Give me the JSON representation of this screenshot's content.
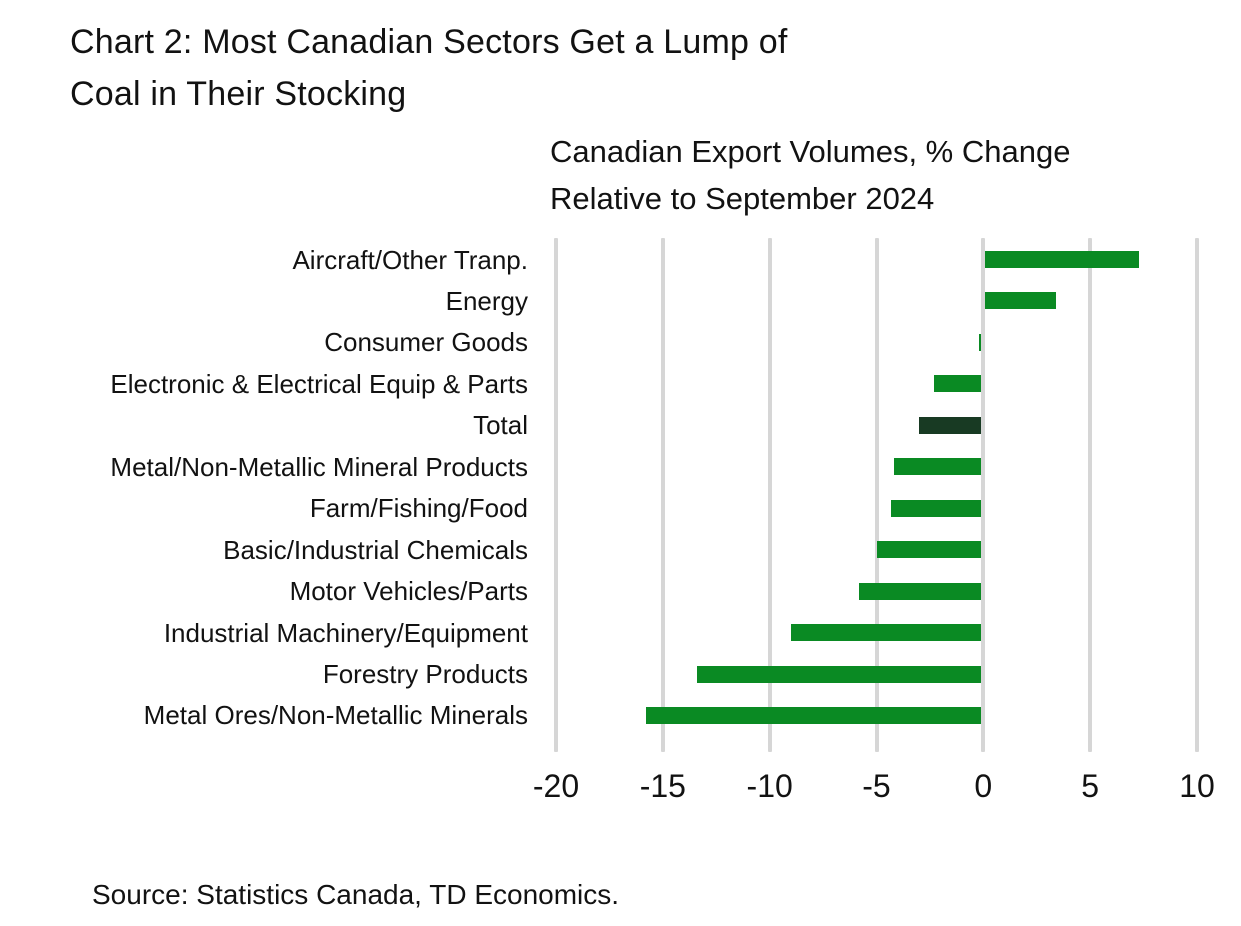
{
  "header": {
    "title_line1": "Chart 2: Most Canadian Sectors Get a Lump of",
    "title_line2": "Coal in Their Stocking",
    "subtitle_line1": "Canadian Export Volumes, % Change",
    "subtitle_line2": "Relative to September 2024"
  },
  "footer": {
    "source": "Source: Statistics Canada, TD Economics."
  },
  "colors": {
    "bar_green": "#0a8a23",
    "bar_highlight_dark": "#183a23",
    "gridline_gray": "#d6d6d6",
    "text": "#121212"
  },
  "chart_data": {
    "type": "bar",
    "orientation": "horizontal",
    "title": "Chart 2: Most Canadian Sectors Get a Lump of Coal in Their Stocking",
    "subtitle": "Canadian Export Volumes, % Change Relative to September 2024",
    "categories": [
      "Aircraft/Other Tranp.",
      "Energy",
      "Consumer Goods",
      "Electronic & Electrical Equip & Parts",
      "Total",
      "Metal/Non-Metallic Mineral Products",
      "Farm/Fishing/Food",
      "Basic/Industrial Chemicals",
      "Motor Vehicles/Parts",
      "Industrial Machinery/Equipment",
      "Forestry Products",
      "Metal Ores/Non-Metallic Minerals"
    ],
    "values": [
      7.3,
      3.4,
      -0.2,
      -2.3,
      -3.0,
      -4.2,
      -4.3,
      -5.0,
      -5.8,
      -9.0,
      -13.4,
      -15.8
    ],
    "highlight_category": "Total",
    "unit": "%",
    "xlim": [
      -20,
      10
    ],
    "xticks": [
      -20,
      -15,
      -10,
      -5,
      0,
      5,
      10
    ],
    "grid": "vertical",
    "legend": "none",
    "source": "Source: Statistics Canada, TD Economics."
  }
}
